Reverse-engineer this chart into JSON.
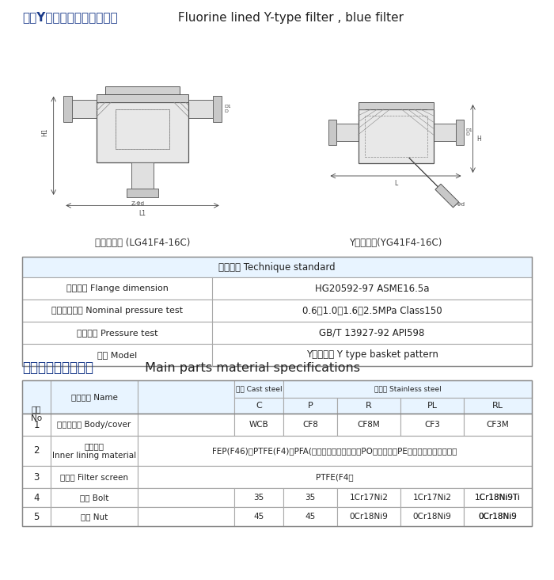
{
  "title_cn": "衬氟Y型过滤器、蓝式过滤器",
  "title_en": " Fluorine lined Y-type filter , blue filter",
  "tech_title": "技术标准 Technique standard",
  "tech_rows": [
    [
      "法兰尺寸 Flange dimension",
      "HG20592-97 ASME16.5a"
    ],
    [
      "公称压力试验 Nominal pressure test",
      "0.6、1.0、1.6、2.5MPa Class150"
    ],
    [
      "压力试验 Pressure test",
      "GB/T 13927-92 API598"
    ],
    [
      "型号 Model",
      "Y型、蓝式 Y type basket pattern"
    ]
  ],
  "parts_title_cn": "主要零件部件材料表",
  "parts_title_en": " Main parts material specifications",
  "label_lan": "蓝式过滤器 (LG41F4-16C)",
  "label_y": "Y型过滤器(YG41F4-16C)",
  "bg_color": "#ffffff",
  "header_bg": "#ddeeff",
  "title_blue": "#1a3a8a",
  "text_dark": "#222222",
  "table_line": "#aaaaaa",
  "light_blue_bg": "#e8f4ff"
}
